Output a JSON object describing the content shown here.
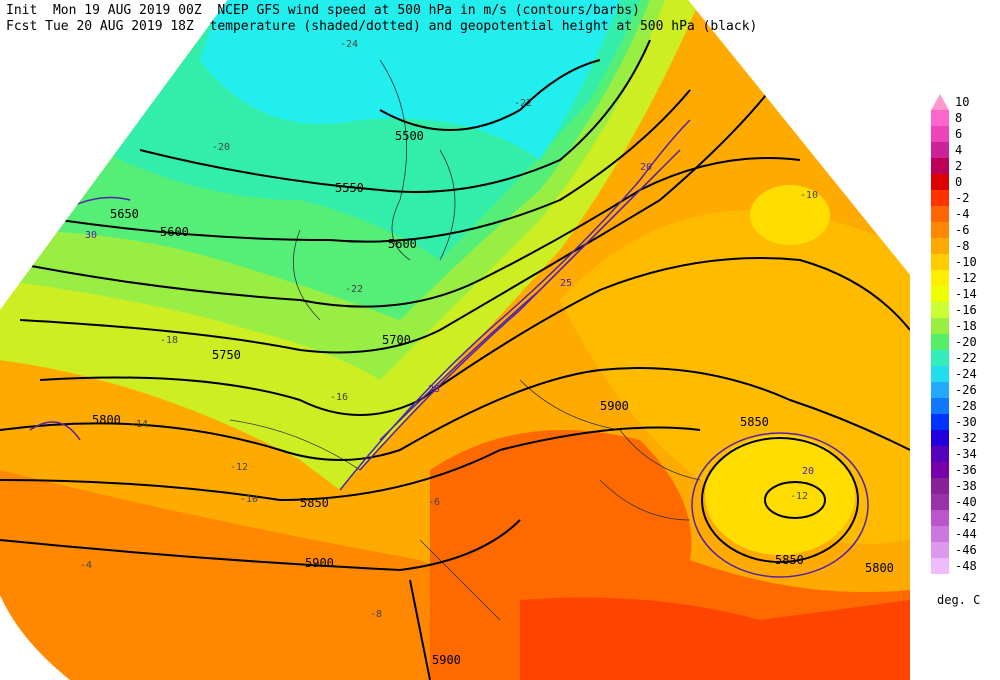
{
  "header": {
    "line1": "Init  Mon 19 AUG 2019 00Z  NCEP GFS wind speed at 500 hPa in m/s (contours/barbs)",
    "line2": "Fcst Tue 20 AUG 2019 18Z  temperature (shaded/dotted) and geopotential height at 500 hPa (black)"
  },
  "colorbar": {
    "labels": [
      "10",
      "8",
      "6",
      "4",
      "2",
      "0",
      "-2",
      "-4",
      "-6",
      "-8",
      "-10",
      "-12",
      "-14",
      "-16",
      "-18",
      "-20",
      "-22",
      "-24",
      "-26",
      "-28",
      "-30",
      "-32",
      "-34",
      "-36",
      "-38",
      "-40",
      "-42",
      "-44",
      "-46",
      "-48"
    ],
    "colors": [
      "#ff99cc",
      "#ff66cc",
      "#ee44bb",
      "#cc2299",
      "#bb0055",
      "#dd0000",
      "#ff3300",
      "#ff6600",
      "#ff8800",
      "#ffaa00",
      "#ffcc00",
      "#ffee00",
      "#eeff00",
      "#ccff33",
      "#99ee44",
      "#55ee66",
      "#33eebb",
      "#22ddee",
      "#22aaff",
      "#1177ff",
      "#0033ff",
      "#2200dd",
      "#5500bb",
      "#7700aa",
      "#882299",
      "#9933aa",
      "#bb55cc",
      "#cc77dd",
      "#dd99ee",
      "#eebbff"
    ],
    "unit": "deg. C"
  },
  "map": {
    "labels": [
      "5500",
      "5550",
      "5600",
      "5600",
      "5650",
      "5700",
      "5750",
      "5800",
      "5850",
      "5850",
      "5900",
      "5900",
      "5900",
      "5850",
      "5800",
      "-24",
      "-22",
      "-20",
      "-18",
      "-16",
      "-14",
      "-12",
      "-10",
      "-8",
      "-6",
      "-4",
      "-22",
      "-12",
      "-10",
      "20",
      "25",
      "30",
      "20",
      "25"
    ]
  }
}
